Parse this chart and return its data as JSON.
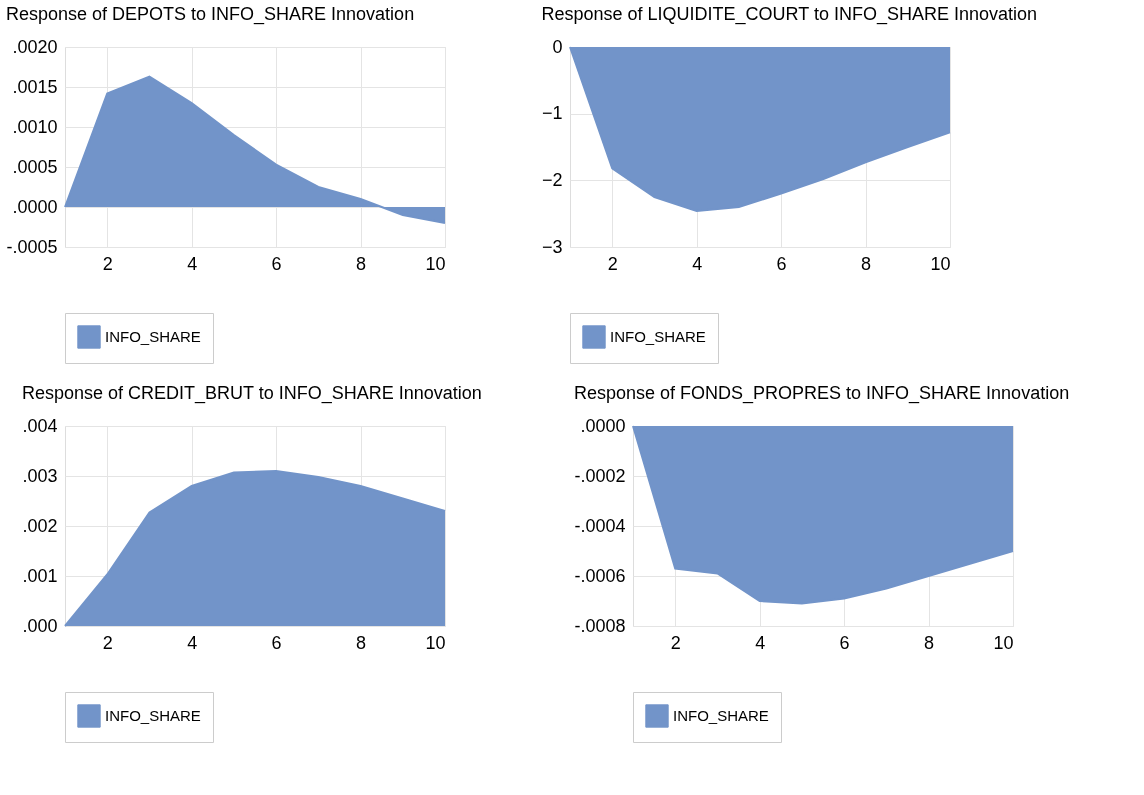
{
  "chart_data": [
    {
      "type": "area",
      "title": "Response of DEPOTS to INFO_SHARE Innovation",
      "x": [
        1,
        2,
        3,
        4,
        5,
        6,
        7,
        8,
        9,
        10
      ],
      "xlim": [
        1,
        10
      ],
      "xticks": [
        2,
        4,
        6,
        8,
        10
      ],
      "ylim": [
        -0.0005,
        0.002
      ],
      "yticks": [
        {
          "value": -0.0005,
          "label": "-.0005"
        },
        {
          "value": 0,
          "label": ".0000"
        },
        {
          "value": 0.0005,
          "label": ".0005"
        },
        {
          "value": 0.001,
          "label": ".0010"
        },
        {
          "value": 0.0015,
          "label": ".0015"
        },
        {
          "value": 0.002,
          "label": ".0020"
        }
      ],
      "grid": true,
      "legend": "bottom",
      "series": [
        {
          "name": "INFO_SHARE",
          "color": "#7294c9",
          "values": [
            0,
            0.00142,
            0.00163,
            0.0013,
            0.0009,
            0.00053,
            0.00025,
            0.0001,
            -0.0001,
            -0.0002
          ]
        }
      ]
    },
    {
      "type": "area",
      "title": "Response of LIQUIDITE_COURT to INFO_SHARE Innovation",
      "x": [
        1,
        2,
        3,
        4,
        5,
        6,
        7,
        8,
        9,
        10
      ],
      "xlim": [
        1,
        10
      ],
      "xticks": [
        2,
        4,
        6,
        8,
        10
      ],
      "ylim": [
        -3,
        0
      ],
      "yticks": [
        -3,
        -2,
        -1,
        0
      ],
      "grid": true,
      "legend": "bottom",
      "series": [
        {
          "name": "INFO_SHARE",
          "color": "#7294c9",
          "values": [
            0,
            -1.82,
            -2.25,
            -2.46,
            -2.4,
            -2.2,
            -1.98,
            -1.73,
            -1.5,
            -1.28
          ]
        }
      ]
    },
    {
      "type": "area",
      "title": "Response of CREDIT_BRUT to INFO_SHARE Innovation",
      "x": [
        1,
        2,
        3,
        4,
        5,
        6,
        7,
        8,
        9,
        10
      ],
      "xlim": [
        1,
        10
      ],
      "xticks": [
        2,
        4,
        6,
        8,
        10
      ],
      "ylim": [
        0,
        0.004
      ],
      "yticks": [
        {
          "value": 0,
          "label": ".000"
        },
        {
          "value": 0.001,
          "label": ".001"
        },
        {
          "value": 0.002,
          "label": ".002"
        },
        {
          "value": 0.003,
          "label": ".003"
        },
        {
          "value": 0.004,
          "label": ".004"
        }
      ],
      "grid": true,
      "legend": "bottom",
      "series": [
        {
          "name": "INFO_SHARE",
          "color": "#7294c9",
          "values": [
            0,
            0.00103,
            0.00227,
            0.0028,
            0.00307,
            0.0031,
            0.00298,
            0.0028,
            0.00255,
            0.0023
          ]
        }
      ]
    },
    {
      "type": "area",
      "title": "Response of FONDS_PROPRES to INFO_SHARE Innovation",
      "x": [
        1,
        2,
        3,
        4,
        5,
        6,
        7,
        8,
        9,
        10
      ],
      "xlim": [
        1,
        10
      ],
      "xticks": [
        2,
        4,
        6,
        8,
        10
      ],
      "ylim": [
        -0.0008,
        0
      ],
      "yticks": [
        {
          "value": -0.0008,
          "label": "-.0008"
        },
        {
          "value": -0.0006,
          "label": "-.0006"
        },
        {
          "value": -0.0004,
          "label": "-.0004"
        },
        {
          "value": -0.0002,
          "label": "-.0002"
        },
        {
          "value": 0,
          "label": ".0000"
        }
      ],
      "grid": true,
      "legend": "bottom",
      "series": [
        {
          "name": "INFO_SHARE",
          "color": "#7294c9",
          "values": [
            0,
            -0.00057,
            -0.00059,
            -0.0007,
            -0.00071,
            -0.00069,
            -0.00065,
            -0.0006,
            -0.00055,
            -0.0005
          ]
        }
      ]
    }
  ]
}
